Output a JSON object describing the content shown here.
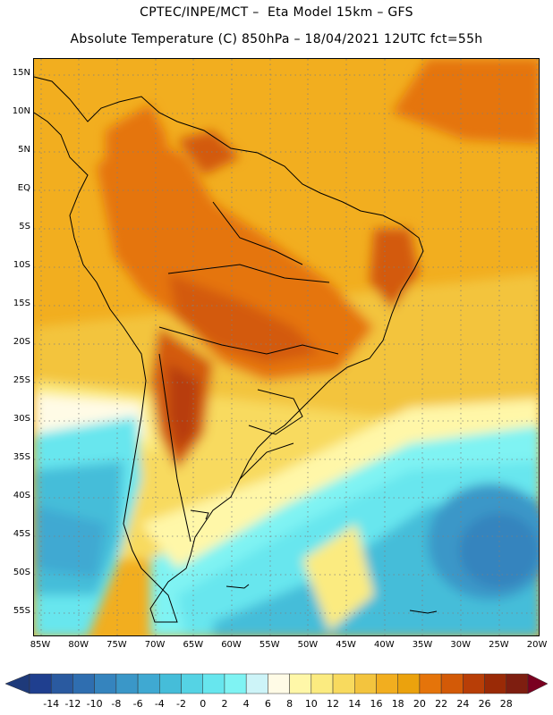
{
  "title": {
    "line1": "CPTEC/INPE/MCT –  Eta Model 15km – GFS",
    "line2": "Absolute Temperature (C) 850hPa – 18/04/2021 12UTC fct=55h"
  },
  "lat_labels": [
    "15N",
    "10N",
    "5N",
    "EQ",
    "5S",
    "10S",
    "15S",
    "20S",
    "25S",
    "30S",
    "35S",
    "40S",
    "45S",
    "50S",
    "55S"
  ],
  "lon_labels": [
    "85W",
    "80W",
    "75W",
    "70W",
    "65W",
    "60W",
    "55W",
    "50W",
    "45W",
    "40W",
    "35W",
    "30W",
    "25W",
    "20W"
  ],
  "colorbar": {
    "ticks": [
      "-14",
      "-12",
      "-10",
      "-8",
      "-6",
      "-4",
      "-2",
      "0",
      "2",
      "4",
      "6",
      "8",
      "10",
      "12",
      "14",
      "16",
      "18",
      "20",
      "22",
      "24",
      "26",
      "28"
    ],
    "colors": [
      "#1f3f8f",
      "#2a5aa0",
      "#2f6eb0",
      "#3584be",
      "#3a97c8",
      "#3fa9d2",
      "#45bdd9",
      "#55d3e4",
      "#67e6ee",
      "#7ff3f3",
      "#cdf4f8",
      "#fffbe6",
      "#fff7a8",
      "#fbeb80",
      "#f8da5e",
      "#f3c43e",
      "#f2ae1f",
      "#eba20d",
      "#e5740a",
      "#d35a07",
      "#b83e07",
      "#9a2a06",
      "#7e1e10"
    ],
    "under_color": "#1e3a7a",
    "over_color": "#7a0020"
  },
  "colors": {
    "ocean_warm": "#f2ae1f",
    "ocean_mild": "#f3c43e",
    "land_hot": "#d35a07",
    "cold_core": "#3a97c8",
    "cyan": "#67e6ee",
    "pale": "#fffbe6"
  }
}
